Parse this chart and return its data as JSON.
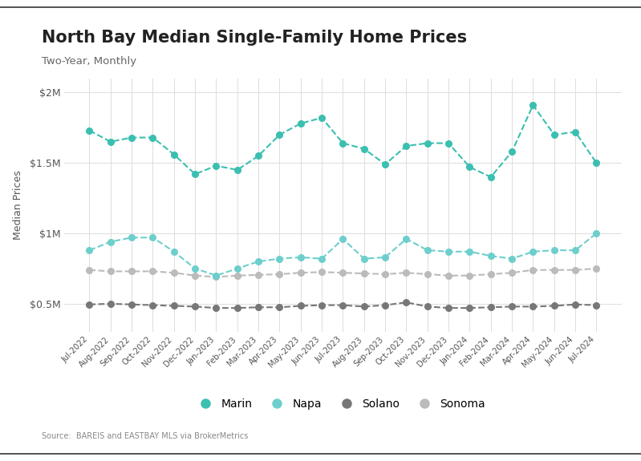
{
  "months": [
    "Jul-2022",
    "Aug-2022",
    "Sep-2022",
    "Oct-2022",
    "Nov-2022",
    "Dec-2022",
    "Jan-2023",
    "Feb-2023",
    "Mar-2023",
    "Apr-2023",
    "May-2023",
    "Jun-2023",
    "Jul-2023",
    "Aug-2023",
    "Sep-2023",
    "Oct-2023",
    "Nov-2023",
    "Dec-2023",
    "Jan-2024",
    "Feb-2024",
    "Mar-2024",
    "Apr-2024",
    "May-2024",
    "Jun-2024",
    "Jul-2024"
  ],
  "marin": [
    1730000,
    1650000,
    1680000,
    1680000,
    1560000,
    1420000,
    1480000,
    1450000,
    1550000,
    1700000,
    1780000,
    1820000,
    1640000,
    1600000,
    1490000,
    1620000,
    1640000,
    1640000,
    1470000,
    1400000,
    1580000,
    1910000,
    1700000,
    1720000,
    1500000
  ],
  "napa": [
    880000,
    940000,
    970000,
    970000,
    870000,
    750000,
    700000,
    750000,
    800000,
    820000,
    830000,
    820000,
    960000,
    820000,
    830000,
    960000,
    880000,
    870000,
    870000,
    840000,
    820000,
    870000,
    880000,
    880000,
    1000000
  ],
  "solano": [
    495000,
    500000,
    495000,
    490000,
    485000,
    480000,
    470000,
    470000,
    475000,
    475000,
    485000,
    490000,
    490000,
    480000,
    490000,
    510000,
    480000,
    470000,
    470000,
    475000,
    480000,
    480000,
    485000,
    495000,
    490000
  ],
  "sonoma": [
    740000,
    730000,
    730000,
    730000,
    720000,
    700000,
    690000,
    700000,
    705000,
    710000,
    720000,
    725000,
    720000,
    715000,
    710000,
    720000,
    710000,
    700000,
    700000,
    710000,
    720000,
    740000,
    740000,
    740000,
    750000
  ],
  "marin_color": "#3BBFB0",
  "napa_color": "#6DCFCC",
  "solano_color": "#777777",
  "sonoma_color": "#BBBBBB",
  "title": "North Bay Median Single-Family Home Prices",
  "subtitle": "Two-Year, Monthly",
  "ylabel": "Median Prices",
  "source": "Source:  BAREIS and EASTBAY MLS via BrokerMetrics",
  "ylim_min": 300000,
  "ylim_max": 2100000,
  "yticks": [
    500000,
    1000000,
    1500000,
    2000000
  ],
  "ytick_labels": [
    "$0.5M",
    "$1M",
    "$1.5M",
    "$2M"
  ],
  "bg_color": "#FFFFFF",
  "plot_bg_color": "#FFFFFF",
  "grid_color": "#DDDDDD"
}
